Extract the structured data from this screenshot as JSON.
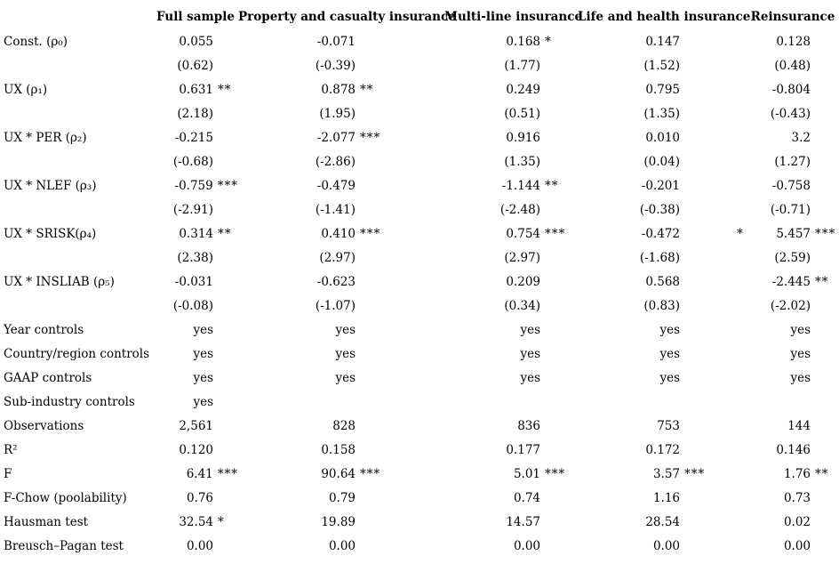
{
  "table": {
    "columns": [
      {
        "id": "labels",
        "label": ""
      },
      {
        "id": "full-sample",
        "label": "Full sample"
      },
      {
        "id": "property-casualty",
        "label": "Property and casualty insurance"
      },
      {
        "id": "multi-line",
        "label": "Multi-line insurance"
      },
      {
        "id": "life-health",
        "label": "Life and health insurance"
      },
      {
        "id": "reinsurance",
        "label": "Reinsurance"
      }
    ],
    "rows": [
      {
        "label": "Const. (ρ₀)",
        "cells": [
          {
            "v": "0.055"
          },
          {
            "v": "-0.071"
          },
          {
            "v": "0.168",
            "s": "*"
          },
          {
            "v": "0.147"
          },
          {
            "v": "0.128"
          }
        ]
      },
      {
        "label": "",
        "cells": [
          {
            "v": "(0.62)"
          },
          {
            "v": "(-0.39)"
          },
          {
            "v": "(1.77)"
          },
          {
            "v": "(1.52)"
          },
          {
            "v": "(0.48)"
          }
        ]
      },
      {
        "label": "UX (ρ₁)",
        "cells": [
          {
            "v": "0.631",
            "s": "**"
          },
          {
            "v": "0.878",
            "s": "**"
          },
          {
            "v": "0.249"
          },
          {
            "v": "0.795"
          },
          {
            "v": "-0.804"
          }
        ]
      },
      {
        "label": "",
        "cells": [
          {
            "v": "(2.18)"
          },
          {
            "v": "(1.95)"
          },
          {
            "v": "(0.51)"
          },
          {
            "v": "(1.35)"
          },
          {
            "v": "(-0.43)"
          }
        ]
      },
      {
        "label": "UX * PER (ρ₂)",
        "cells": [
          {
            "v": "-0.215"
          },
          {
            "v": "-2.077",
            "s": "***"
          },
          {
            "v": "0.916"
          },
          {
            "v": "0.010"
          },
          {
            "v": "3.2"
          }
        ]
      },
      {
        "label": "",
        "cells": [
          {
            "v": "(-0.68)"
          },
          {
            "v": "(-2.86)"
          },
          {
            "v": "(1.35)"
          },
          {
            "v": "(0.04)"
          },
          {
            "v": "(1.27)"
          }
        ]
      },
      {
        "label": "UX * NLEF (ρ₃)",
        "cells": [
          {
            "v": "-0.759",
            "s": "***"
          },
          {
            "v": "-0.479"
          },
          {
            "v": "-1.144",
            "s": "**"
          },
          {
            "v": "-0.201"
          },
          {
            "v": "-0.758"
          }
        ]
      },
      {
        "label": "",
        "cells": [
          {
            "v": "(-2.91)"
          },
          {
            "v": "(-1.41)"
          },
          {
            "v": "(-2.48)"
          },
          {
            "v": "(-0.38)"
          },
          {
            "v": "(-0.71)"
          }
        ]
      },
      {
        "label": "UX * SRISK(ρ₄)",
        "cells": [
          {
            "v": "0.314",
            "s": "**"
          },
          {
            "v": "0.410",
            "s": "***"
          },
          {
            "v": "0.754",
            "s": "***"
          },
          {
            "v": "-0.472",
            "s": "*",
            "offset": true
          },
          {
            "v": "5.457",
            "s": "***"
          }
        ]
      },
      {
        "label": "",
        "cells": [
          {
            "v": "(2.38)"
          },
          {
            "v": "(2.97)"
          },
          {
            "v": "(2.97)"
          },
          {
            "v": "(-1.68)"
          },
          {
            "v": "(2.59)"
          }
        ]
      },
      {
        "label": "UX * INSLIAB (ρ₅)",
        "cells": [
          {
            "v": "-0.031"
          },
          {
            "v": "-0.623"
          },
          {
            "v": "0.209"
          },
          {
            "v": "0.568"
          },
          {
            "v": "-2.445",
            "s": "**"
          }
        ]
      },
      {
        "label": "",
        "cells": [
          {
            "v": "(-0.08)"
          },
          {
            "v": "(-1.07)"
          },
          {
            "v": "(0.34)"
          },
          {
            "v": "(0.83)"
          },
          {
            "v": "(-2.02)"
          }
        ]
      },
      {
        "label": "Year controls",
        "cells": [
          {
            "v": "yes"
          },
          {
            "v": "yes"
          },
          {
            "v": "yes"
          },
          {
            "v": "yes"
          },
          {
            "v": "yes"
          }
        ]
      },
      {
        "label": "Country/region controls",
        "cells": [
          {
            "v": "yes"
          },
          {
            "v": "yes"
          },
          {
            "v": "yes"
          },
          {
            "v": "yes"
          },
          {
            "v": "yes"
          }
        ]
      },
      {
        "label": "GAAP controls",
        "cells": [
          {
            "v": "yes"
          },
          {
            "v": "yes"
          },
          {
            "v": "yes"
          },
          {
            "v": "yes"
          },
          {
            "v": "yes"
          }
        ]
      },
      {
        "label": "Sub-industry controls",
        "cells": [
          {
            "v": "yes"
          },
          {
            "v": ""
          },
          {
            "v": ""
          },
          {
            "v": ""
          },
          {
            "v": ""
          }
        ]
      },
      {
        "label": "Observations",
        "cells": [
          {
            "v": "2,561"
          },
          {
            "v": "828"
          },
          {
            "v": "836"
          },
          {
            "v": "753"
          },
          {
            "v": "144"
          }
        ]
      },
      {
        "label": "R²",
        "cells": [
          {
            "v": "0.120"
          },
          {
            "v": "0.158"
          },
          {
            "v": "0.177"
          },
          {
            "v": "0.172"
          },
          {
            "v": "0.146"
          }
        ]
      },
      {
        "label": "F",
        "cells": [
          {
            "v": "6.41",
            "s": "***"
          },
          {
            "v": "90.64",
            "s": "***"
          },
          {
            "v": "5.01",
            "s": "***"
          },
          {
            "v": "3.57",
            "s": "***"
          },
          {
            "v": "1.76",
            "s": "**"
          }
        ]
      },
      {
        "label": "F-Chow (poolability)",
        "cells": [
          {
            "v": "0.76"
          },
          {
            "v": "0.79"
          },
          {
            "v": "0.74"
          },
          {
            "v": "1.16"
          },
          {
            "v": "0.73"
          }
        ]
      },
      {
        "label": "Hausman test",
        "cells": [
          {
            "v": "32.54",
            "s": "*"
          },
          {
            "v": "19.89"
          },
          {
            "v": "14.57"
          },
          {
            "v": "28.54"
          },
          {
            "v": "0.02"
          }
        ]
      },
      {
        "label": "Breusch–Pagan test",
        "cells": [
          {
            "v": "0.00"
          },
          {
            "v": "0.00"
          },
          {
            "v": "0.00"
          },
          {
            "v": "0.00"
          },
          {
            "v": "0.00"
          }
        ]
      }
    ]
  }
}
